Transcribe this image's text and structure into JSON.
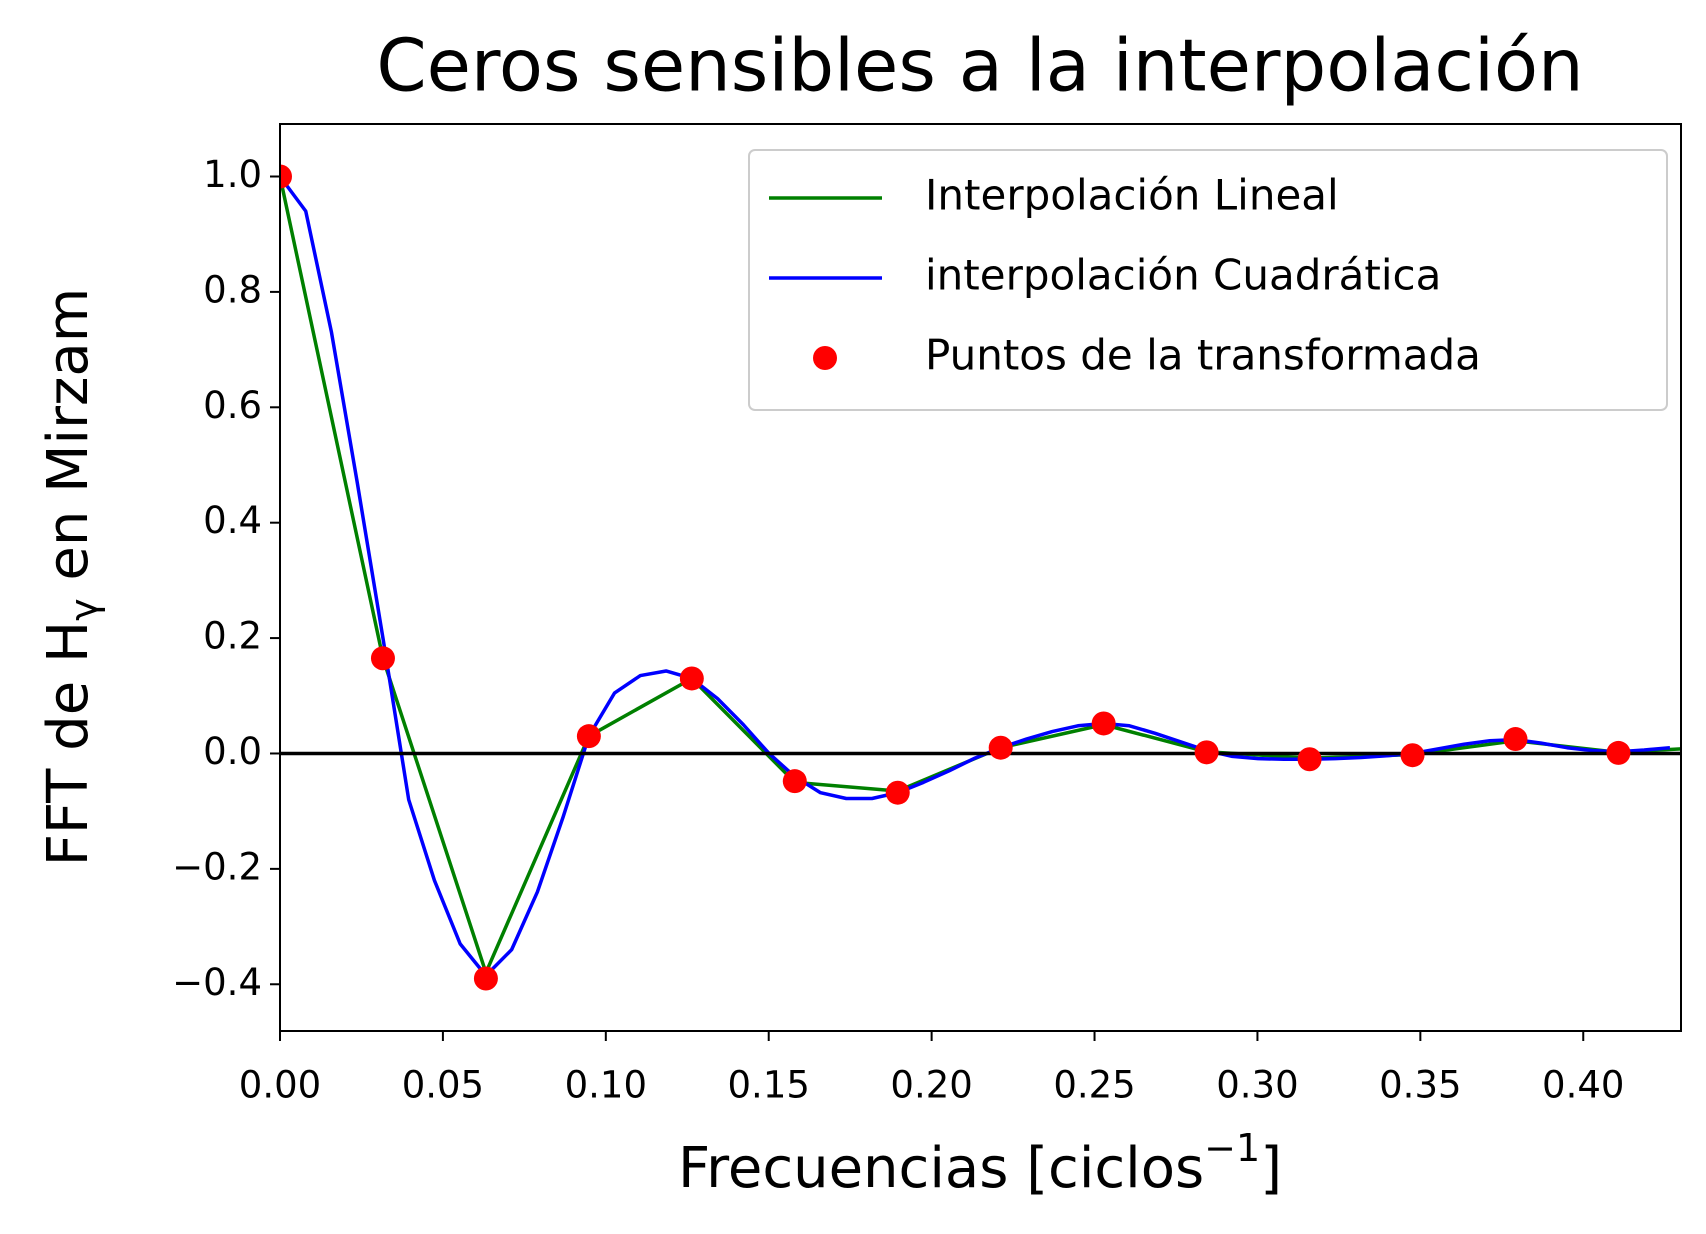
{
  "chart_data": {
    "type": "line",
    "title": "Ceros sensibles a la interpolación",
    "xlabel": [
      "Frecuencias [ciclos",
      "−1",
      "]"
    ],
    "ylabel": [
      "FFT de H",
      "γ",
      " en Mirzam"
    ],
    "xlim": [
      0,
      0.43
    ],
    "ylim": [
      -0.481,
      1.091
    ],
    "xticks": [
      {
        "value": 0,
        "label": "0.00"
      },
      0.05,
      {
        "value": 0.1,
        "label": "0.10"
      },
      0.15,
      {
        "value": 0.2,
        "label": "0.20"
      },
      0.25,
      {
        "value": 0.3,
        "label": "0.30"
      },
      0.35,
      {
        "value": 0.4,
        "label": "0.40"
      }
    ],
    "yticks": [
      {
        "value": -0.4,
        "label": "−0.4"
      },
      {
        "value": -0.2,
        "label": "−0.2"
      },
      {
        "value": 0,
        "label": "0.0"
      },
      0.2,
      0.4,
      0.6,
      0.8,
      {
        "value": 1,
        "label": "1.0"
      }
    ],
    "hline": 0,
    "legend": "upper right",
    "series": [
      {
        "name": "Interpolación Lineal",
        "color": "#008000",
        "type": "line",
        "x": [
          0,
          0.0316,
          0.0632,
          0.0948,
          0.1264,
          0.158,
          0.1896,
          0.2212,
          0.2528,
          0.2844,
          0.316,
          0.3476,
          0.3792,
          0.4108,
          0.43
        ],
        "values": [
          1.0,
          0.165,
          -0.38,
          0.03,
          0.13,
          -0.05,
          -0.065,
          0.01,
          0.05,
          0.003,
          -0.008,
          -0.002,
          0.022,
          0.002,
          0.008
        ]
      },
      {
        "name": "interpolación Cuadrática",
        "color": "#0000ff",
        "type": "line",
        "x": [
          0,
          0.0079,
          0.0158,
          0.0237,
          0.0316,
          0.0395,
          0.0474,
          0.0553,
          0.0632,
          0.0711,
          0.079,
          0.0869,
          0.0948,
          0.1027,
          0.1106,
          0.1185,
          0.1264,
          0.1343,
          0.1422,
          0.1501,
          0.158,
          0.1659,
          0.1738,
          0.1817,
          0.1896,
          0.1975,
          0.2054,
          0.2133,
          0.2212,
          0.2291,
          0.237,
          0.2449,
          0.2528,
          0.2607,
          0.2686,
          0.2765,
          0.2844,
          0.2923,
          0.3002,
          0.3081,
          0.316,
          0.3239,
          0.3318,
          0.3397,
          0.3476,
          0.3555,
          0.3634,
          0.3713,
          0.3792,
          0.3871,
          0.395,
          0.4029,
          0.4108,
          0.4187,
          0.4266
        ],
        "values": [
          1.0,
          0.94,
          0.73,
          0.47,
          0.2,
          -0.08,
          -0.22,
          -0.33,
          -0.385,
          -0.34,
          -0.24,
          -0.11,
          0.03,
          0.105,
          0.135,
          0.143,
          0.13,
          0.095,
          0.05,
          0.0,
          -0.04,
          -0.068,
          -0.078,
          -0.078,
          -0.068,
          -0.05,
          -0.03,
          -0.008,
          0.01,
          0.025,
          0.038,
          0.048,
          0.052,
          0.048,
          0.035,
          0.02,
          0.005,
          -0.005,
          -0.009,
          -0.01,
          -0.01,
          -0.009,
          -0.007,
          -0.004,
          0.0,
          0.008,
          0.016,
          0.022,
          0.024,
          0.018,
          0.01,
          0.005,
          0.003,
          0.006,
          0.01
        ]
      },
      {
        "name": "Puntos de la transformada",
        "color": "#ff0000",
        "type": "scatter",
        "x": [
          0,
          0.0316,
          0.0632,
          0.0948,
          0.1264,
          0.158,
          0.1896,
          0.2212,
          0.2528,
          0.2844,
          0.316,
          0.3476,
          0.3792,
          0.4108
        ],
        "values": [
          1.0,
          0.165,
          -0.39,
          0.03,
          0.13,
          -0.048,
          -0.068,
          0.01,
          0.052,
          0.002,
          -0.01,
          -0.003,
          0.025,
          0.001
        ]
      }
    ]
  }
}
